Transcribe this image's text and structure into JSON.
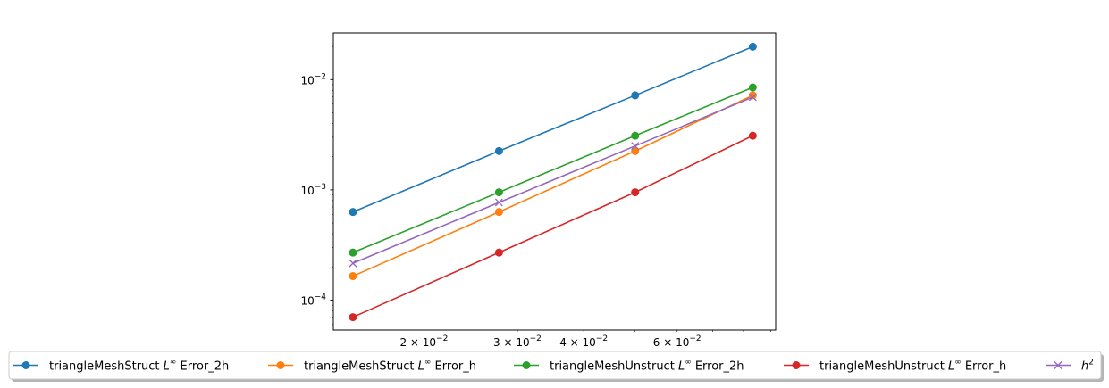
{
  "chart_data": {
    "type": "line",
    "xscale": "log",
    "yscale": "log",
    "xlim": [
      0.0135,
      0.092
    ],
    "ylim": [
      5.35e-05,
      0.0265
    ],
    "x_major_ticks": [],
    "x_minor_ticks": [
      {
        "value": 0.02,
        "mantissa": "2",
        "base": "10",
        "exp": "−2"
      },
      {
        "value": 0.03,
        "mantissa": "3",
        "base": "10",
        "exp": "−2"
      },
      {
        "value": 0.04,
        "mantissa": "4",
        "base": "10",
        "exp": "−2"
      },
      {
        "value": 0.06,
        "mantissa": "6",
        "base": "10",
        "exp": "−2"
      }
    ],
    "y_major_ticks": [
      {
        "value": 0.0001,
        "base": "10",
        "exp": "−4"
      },
      {
        "value": 0.001,
        "base": "10",
        "exp": "−3"
      },
      {
        "value": 0.01,
        "base": "10",
        "exp": "−2"
      }
    ],
    "x": [
      0.0147,
      0.0277,
      0.05,
      0.0833
    ],
    "series": [
      {
        "name_prefix": "triangleMeshStruct ",
        "name_math": "L",
        "name_sup": "∞",
        "name_suffix": " Error_2h",
        "color": "#1f77b4",
        "marker": "circle",
        "values": [
          0.00063,
          0.00225,
          0.0072,
          0.0199
        ]
      },
      {
        "name_prefix": "triangleMeshStruct ",
        "name_math": "L",
        "name_sup": "∞",
        "name_suffix": " Error_h",
        "color": "#ff7f0e",
        "marker": "circle",
        "values": [
          0.000165,
          0.00063,
          0.00225,
          0.0072
        ]
      },
      {
        "name_prefix": "triangleMeshUnstruct ",
        "name_math": "L",
        "name_sup": "∞",
        "name_suffix": " Error_2h",
        "color": "#2ca02c",
        "marker": "circle",
        "values": [
          0.00027,
          0.00095,
          0.0031,
          0.0085
        ]
      },
      {
        "name_prefix": "triangleMeshUnstruct ",
        "name_math": "L",
        "name_sup": "∞",
        "name_suffix": " Error_h",
        "color": "#d62728",
        "marker": "circle",
        "values": [
          7e-05,
          0.00027,
          0.00095,
          0.0031
        ]
      },
      {
        "name_prefix": "",
        "name_math": "h",
        "name_sup": "2",
        "name_suffix": "",
        "color": "#9467bd",
        "marker": "x",
        "values": [
          0.000216,
          0.000769,
          0.0025,
          0.00694
        ]
      }
    ],
    "legend_position": "bottom, outside plot",
    "grid": false
  }
}
